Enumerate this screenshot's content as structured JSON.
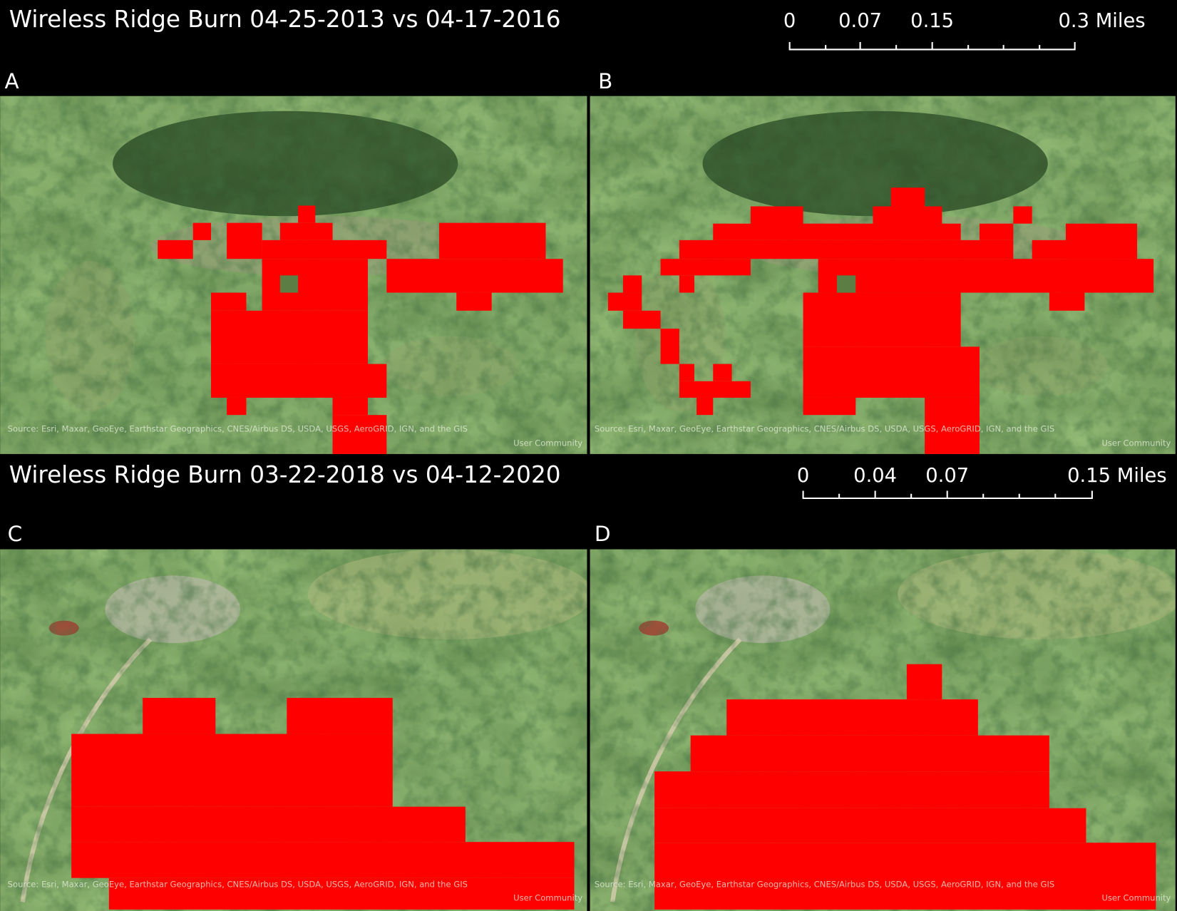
{
  "sections": [
    {
      "title": "Wireless Ridge Burn 04-25-2013 vs 04-17-2016",
      "scale_labels": [
        "0",
        "0.07",
        "0.15",
        "0.3 Miles"
      ],
      "panels": [
        {
          "letter": "A",
          "attribution": [
            "Source: Esri, Maxar, GeoEye, Earthstar Geographics, CNES/Airbus DS, USDA, USGS, AeroGRID, IGN, and the GIS",
            "User Community"
          ]
        },
        {
          "letter": "B",
          "attribution": [
            "Source: Esri, Maxar, GeoEye, Earthstar Geographics, CNES/Airbus DS, USDA, USGS, AeroGRID, IGN, and the GIS",
            "User Community"
          ]
        }
      ]
    },
    {
      "title": "Wireless Ridge Burn 03-22-2018 vs 04-12-2020",
      "scale_labels": [
        "0",
        "0.04",
        "0.07",
        "0.15 Miles"
      ],
      "panels": [
        {
          "letter": "C",
          "attribution": [
            "Source: Esri, Maxar, GeoEye, Earthstar Geographics, CNES/Airbus DS, USDA, USGS, AeroGRID, IGN, and the GIS",
            "User Community"
          ]
        },
        {
          "letter": "D",
          "attribution": [
            "Source: Esri, Maxar, GeoEye, Earthstar Geographics, CNES/Airbus DS, USDA, USGS, AeroGRID, IGN, and the GIS",
            "User Community"
          ]
        }
      ]
    }
  ]
}
